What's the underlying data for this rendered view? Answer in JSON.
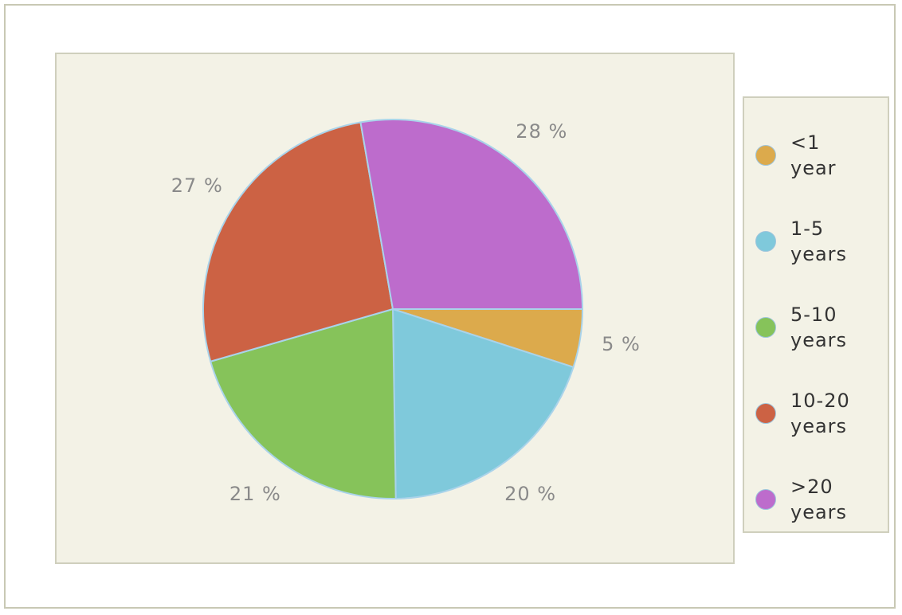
{
  "chart_data": {
    "type": "pie",
    "categories": [
      "<1 year",
      "1-5 years",
      "5-10 years",
      "10-20 years",
      ">20 years"
    ],
    "values": [
      5,
      20,
      21,
      27,
      28
    ],
    "value_labels": [
      "5 %",
      "20 %",
      "21 %",
      "27 %",
      "28 %"
    ],
    "colors": [
      "#dcaa4c",
      "#7fc9db",
      "#86c35a",
      "#cc6244",
      "#bd6ccc"
    ],
    "legend": "right"
  }
}
